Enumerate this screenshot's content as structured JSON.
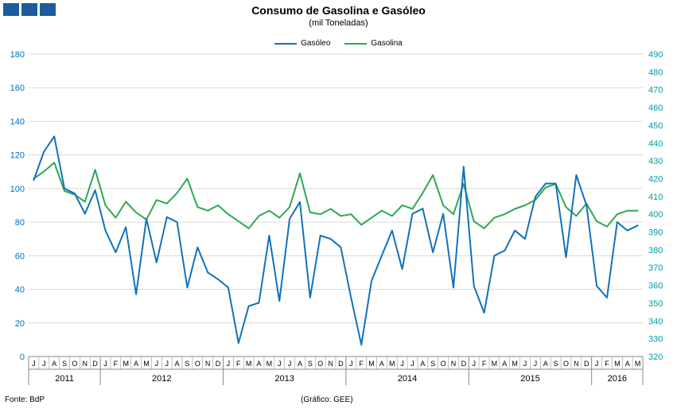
{
  "logo": {
    "squares": 3,
    "color": "#1B5B9E"
  },
  "chart_data": {
    "type": "line",
    "title": "Consumo de Gasolina e Gasóleo",
    "subtitle": "(mil Toneladas)",
    "legend_position": "top",
    "grid": true,
    "left_axis": {
      "min": 0,
      "max": 180,
      "step": 20,
      "color": "#0070C0",
      "series": "Gasóleo"
    },
    "right_axis": {
      "min": 320,
      "max": 490,
      "step": 10,
      "color": "#00A0A0",
      "series": "Gasolina"
    },
    "x_groups": [
      {
        "year": "2011",
        "months": [
          "J",
          "J",
          "A",
          "S",
          "O",
          "N",
          "D"
        ]
      },
      {
        "year": "2012",
        "months": [
          "J",
          "F",
          "M",
          "A",
          "M",
          "J",
          "J",
          "A",
          "S",
          "O",
          "N",
          "D"
        ]
      },
      {
        "year": "2013",
        "months": [
          "J",
          "F",
          "M",
          "A",
          "M",
          "J",
          "J",
          "A",
          "S",
          "O",
          "N",
          "D"
        ]
      },
      {
        "year": "2014",
        "months": [
          "J",
          "F",
          "M",
          "A",
          "M",
          "J",
          "J",
          "A",
          "S",
          "O",
          "N",
          "D"
        ]
      },
      {
        "year": "2015",
        "months": [
          "J",
          "F",
          "M",
          "A",
          "M",
          "J",
          "J",
          "A",
          "S",
          "O",
          "N",
          "D"
        ]
      },
      {
        "year": "2016",
        "months": [
          "J",
          "F",
          "M",
          "A",
          "M"
        ]
      }
    ],
    "series": [
      {
        "name": "Gasóleo",
        "axis": "left",
        "color": "#1172BA",
        "values": [
          105,
          122,
          131,
          100,
          97,
          85,
          99,
          75,
          62,
          77,
          37,
          82,
          56,
          83,
          80,
          41,
          65,
          50,
          46,
          41,
          8,
          30,
          32,
          72,
          33,
          82,
          92,
          35,
          72,
          70,
          65,
          35,
          7,
          45,
          60,
          75,
          52,
          85,
          88,
          62,
          85,
          41,
          113,
          42,
          26,
          60,
          63,
          75,
          70,
          95,
          103,
          103,
          59,
          108,
          90,
          42,
          35,
          80,
          75,
          78
        ]
      },
      {
        "name": "Gasolina",
        "axis": "right",
        "color": "#2EA853",
        "values": [
          420,
          424,
          429,
          413,
          411,
          407,
          425,
          405,
          398,
          407,
          401,
          397,
          408,
          406,
          412,
          420,
          404,
          402,
          405,
          400,
          396,
          392,
          399,
          402,
          398,
          404,
          423,
          401,
          400,
          403,
          399,
          400,
          394,
          398,
          402,
          399,
          405,
          403,
          412,
          422,
          405,
          400,
          417,
          396,
          392,
          398,
          400,
          403,
          405,
          408,
          415,
          417,
          404,
          399,
          406,
          396,
          393,
          400,
          402,
          402
        ]
      }
    ]
  },
  "footer": {
    "source": "Fonte: BdP",
    "credit": "(Gráfico: GEE)"
  }
}
